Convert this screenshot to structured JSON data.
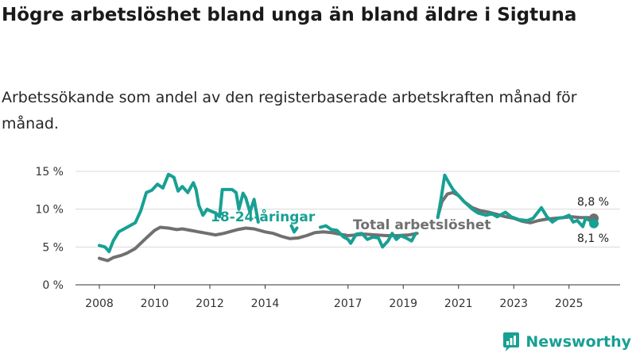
{
  "title": "Högre arbetslöshet bland unga än bland äldre i Sigtuna",
  "subtitle": "Arbetssökande som andel av den registerbaserade arbetskraften månad för månad.",
  "brand": "Newsworthy",
  "colors": {
    "youth": "#17a093",
    "total": "#707070",
    "grid": "#d9d9d9",
    "axis": "#333333"
  },
  "chart_data": {
    "type": "line",
    "xlim": [
      2007.5,
      2026.9
    ],
    "ylim": [
      0,
      15
    ],
    "yticks": [
      0,
      5,
      10,
      15
    ],
    "ytick_labels": [
      "0 %",
      "5 %",
      "10 %",
      "15 %"
    ],
    "xticks": [
      2008,
      2010,
      2012,
      2014,
      2017,
      2019,
      2021,
      2023,
      2025
    ],
    "xtick_labels": [
      "2008",
      "2010",
      "2012",
      "2014",
      "2017",
      "2019",
      "2021",
      "2023",
      "2025"
    ],
    "series": [
      {
        "name": "18-24-åringar",
        "label": "18-24-åringar",
        "segments": [
          [
            [
              2008.0,
              5.2
            ],
            [
              2008.2,
              5.0
            ],
            [
              2008.35,
              4.4
            ],
            [
              2008.5,
              5.8
            ],
            [
              2008.7,
              7.0
            ],
            [
              2009.0,
              7.6
            ],
            [
              2009.3,
              8.2
            ],
            [
              2009.5,
              9.8
            ],
            [
              2009.7,
              12.2
            ],
            [
              2009.9,
              12.5
            ],
            [
              2010.1,
              13.3
            ],
            [
              2010.3,
              12.8
            ],
            [
              2010.5,
              14.6
            ],
            [
              2010.7,
              14.2
            ],
            [
              2010.85,
              12.4
            ],
            [
              2011.0,
              13.0
            ],
            [
              2011.2,
              12.2
            ],
            [
              2011.4,
              13.5
            ],
            [
              2011.5,
              12.6
            ],
            [
              2011.6,
              10.5
            ],
            [
              2011.75,
              9.2
            ],
            [
              2011.9,
              10.0
            ],
            [
              2012.0,
              9.8
            ],
            [
              2012.2,
              9.5
            ],
            [
              2012.35,
              9.0
            ],
            [
              2012.45,
              12.6
            ],
            [
              2012.6,
              12.6
            ],
            [
              2012.8,
              12.6
            ],
            [
              2012.95,
              12.2
            ],
            [
              2013.05,
              10.0
            ],
            [
              2013.2,
              12.1
            ],
            [
              2013.3,
              11.5
            ],
            [
              2013.45,
              9.6
            ],
            [
              2013.6,
              11.3
            ],
            [
              2013.75,
              8.3
            ]
          ],
          [
            [
              2014.95,
              7.8
            ],
            [
              2015.05,
              7.0
            ],
            [
              2015.15,
              7.5
            ]
          ],
          [
            [
              2016.0,
              7.6
            ],
            [
              2016.2,
              7.8
            ],
            [
              2016.4,
              7.3
            ],
            [
              2016.6,
              7.2
            ],
            [
              2016.85,
              6.3
            ],
            [
              2017.0,
              6.0
            ],
            [
              2017.1,
              5.5
            ],
            [
              2017.3,
              6.7
            ],
            [
              2017.5,
              6.8
            ],
            [
              2017.7,
              6.0
            ],
            [
              2017.9,
              6.3
            ],
            [
              2018.1,
              6.2
            ],
            [
              2018.25,
              5.0
            ],
            [
              2018.45,
              5.8
            ],
            [
              2018.6,
              6.8
            ],
            [
              2018.75,
              6.0
            ],
            [
              2018.9,
              6.5
            ],
            [
              2019.1,
              6.2
            ],
            [
              2019.3,
              5.8
            ],
            [
              2019.45,
              6.8
            ]
          ],
          [
            [
              2020.25,
              8.9
            ],
            [
              2020.35,
              11.0
            ],
            [
              2020.5,
              14.5
            ],
            [
              2020.65,
              13.5
            ],
            [
              2020.8,
              12.6
            ],
            [
              2021.0,
              11.8
            ],
            [
              2021.2,
              11.0
            ],
            [
              2021.35,
              10.5
            ],
            [
              2021.5,
              10.0
            ],
            [
              2021.7,
              9.5
            ],
            [
              2022.0,
              9.2
            ],
            [
              2022.2,
              9.4
            ],
            [
              2022.4,
              9.0
            ],
            [
              2022.7,
              9.6
            ],
            [
              2022.9,
              9.0
            ],
            [
              2023.2,
              8.6
            ],
            [
              2023.5,
              8.5
            ],
            [
              2023.7,
              8.8
            ],
            [
              2024.0,
              10.2
            ],
            [
              2024.2,
              9.0
            ],
            [
              2024.4,
              8.3
            ],
            [
              2024.6,
              8.8
            ],
            [
              2024.8,
              8.9
            ],
            [
              2025.0,
              9.2
            ],
            [
              2025.15,
              8.3
            ],
            [
              2025.3,
              8.5
            ],
            [
              2025.5,
              7.7
            ],
            [
              2025.6,
              8.8
            ],
            [
              2025.75,
              8.5
            ],
            [
              2025.9,
              8.1
            ]
          ]
        ]
      },
      {
        "name": "Total arbetslöshet",
        "label": "Total arbetslöshet",
        "segments": [
          [
            [
              2008.0,
              3.5
            ],
            [
              2008.3,
              3.2
            ],
            [
              2008.5,
              3.6
            ],
            [
              2008.8,
              3.9
            ],
            [
              2009.0,
              4.2
            ],
            [
              2009.3,
              4.8
            ],
            [
              2009.5,
              5.5
            ],
            [
              2009.7,
              6.2
            ],
            [
              2010.0,
              7.2
            ],
            [
              2010.2,
              7.6
            ],
            [
              2010.5,
              7.5
            ],
            [
              2010.8,
              7.3
            ],
            [
              2011.0,
              7.4
            ],
            [
              2011.3,
              7.2
            ],
            [
              2011.6,
              7.0
            ],
            [
              2011.9,
              6.8
            ],
            [
              2012.2,
              6.6
            ],
            [
              2012.5,
              6.8
            ],
            [
              2012.8,
              7.1
            ],
            [
              2013.0,
              7.3
            ],
            [
              2013.3,
              7.5
            ],
            [
              2013.6,
              7.4
            ],
            [
              2014.0,
              7.0
            ],
            [
              2014.3,
              6.8
            ],
            [
              2014.6,
              6.4
            ],
            [
              2014.9,
              6.1
            ],
            [
              2015.2,
              6.2
            ],
            [
              2015.5,
              6.5
            ],
            [
              2015.8,
              6.9
            ],
            [
              2016.1,
              7.0
            ],
            [
              2016.4,
              6.9
            ],
            [
              2016.7,
              6.7
            ],
            [
              2017.0,
              6.5
            ],
            [
              2017.3,
              6.6
            ],
            [
              2017.6,
              6.7
            ],
            [
              2018.0,
              6.6
            ],
            [
              2018.4,
              6.5
            ],
            [
              2018.8,
              6.5
            ],
            [
              2019.2,
              6.6
            ],
            [
              2019.5,
              6.8
            ]
          ],
          [
            [
              2020.25,
              9.0
            ],
            [
              2020.4,
              11.0
            ],
            [
              2020.6,
              12.0
            ],
            [
              2020.8,
              12.2
            ],
            [
              2021.0,
              11.8
            ],
            [
              2021.2,
              11.0
            ],
            [
              2021.5,
              10.2
            ],
            [
              2021.8,
              9.8
            ],
            [
              2022.1,
              9.6
            ],
            [
              2022.4,
              9.3
            ],
            [
              2022.7,
              9.0
            ],
            [
              2023.0,
              8.8
            ],
            [
              2023.3,
              8.4
            ],
            [
              2023.6,
              8.2
            ],
            [
              2023.9,
              8.5
            ],
            [
              2024.2,
              8.7
            ],
            [
              2024.5,
              8.8
            ],
            [
              2024.8,
              8.9
            ],
            [
              2025.1,
              9.0
            ],
            [
              2025.4,
              8.9
            ],
            [
              2025.7,
              8.9
            ],
            [
              2025.9,
              8.8
            ]
          ]
        ]
      }
    ],
    "end_labels": {
      "total": "8,8 %",
      "youth": "8,1 %"
    }
  }
}
